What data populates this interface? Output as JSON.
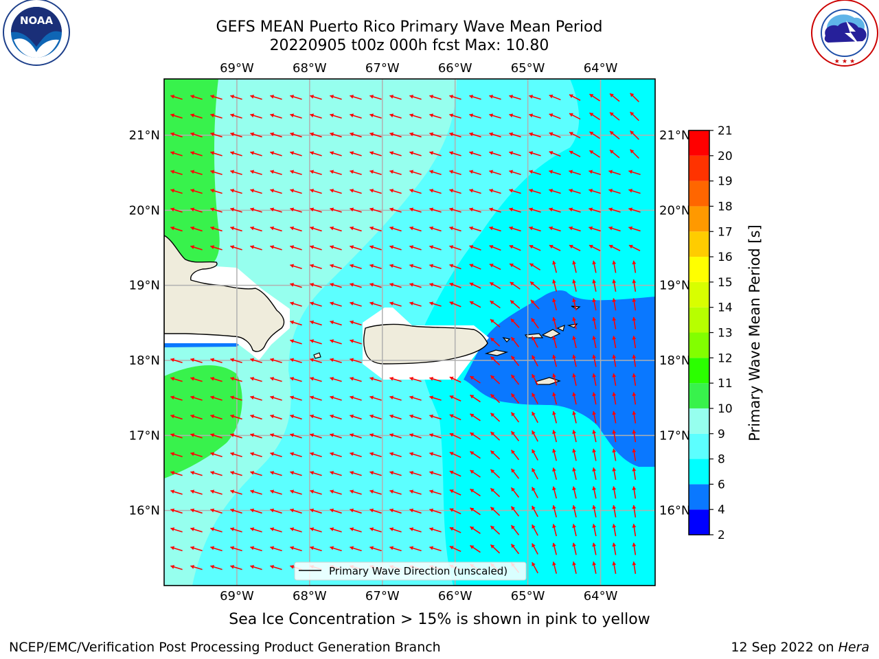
{
  "header": {
    "title_line1": "GEFS MEAN Puerto Rico Primary Wave Mean Period",
    "title_line2": "20220905 t00z 000h fcst   Max: 10.80"
  },
  "logos": {
    "left": {
      "icon": "noaa-logo-icon",
      "text": "NOAA",
      "ring_text": "NATIONAL OCEANIC AND ATMOSPHERIC ADMINISTRATION · U.S. DEPARTMENT OF COMMERCE"
    },
    "right": {
      "icon": "nws-logo-icon",
      "ring_text": "NATIONAL WEATHER SERVICE"
    }
  },
  "map": {
    "lon_labels": [
      "69°W",
      "68°W",
      "67°W",
      "66°W",
      "65°W",
      "64°W"
    ],
    "lat_labels": [
      "21°N",
      "20°N",
      "19°N",
      "18°N",
      "17°N",
      "16°N"
    ],
    "lon_range": [
      -70.0,
      -63.25
    ],
    "lat_range": [
      15.0,
      21.75
    ],
    "legend_label": "Primary Wave Direction (unscaled)",
    "arrow_color": "#ff0000",
    "land_color": "#efecdc",
    "gridlines": true
  },
  "colorbar": {
    "label": "Primary Wave Mean Period [s]",
    "ticks": [
      "2",
      "4",
      "6",
      "8",
      "9",
      "10",
      "11",
      "12",
      "13",
      "14",
      "15",
      "16",
      "17",
      "18",
      "19",
      "20",
      "21"
    ],
    "colors": [
      "#0000ff",
      "#0a78ff",
      "#00ffff",
      "#5cffff",
      "#96ffee",
      "#38f24c",
      "#2bff00",
      "#82ff00",
      "#b7ff00",
      "#d8ff00",
      "#ffff00",
      "#ffcc00",
      "#ff9900",
      "#ff6600",
      "#ff3300",
      "#ff0000"
    ]
  },
  "footer": {
    "subtitle": "Sea Ice Concentration > 15% is shown in pink to yellow",
    "credit_left": "NCEP/EMC/Verification Post Processing Product Generation Branch",
    "credit_right_date": "12 Sep 2022 on ",
    "credit_right_host": "Hera"
  }
}
